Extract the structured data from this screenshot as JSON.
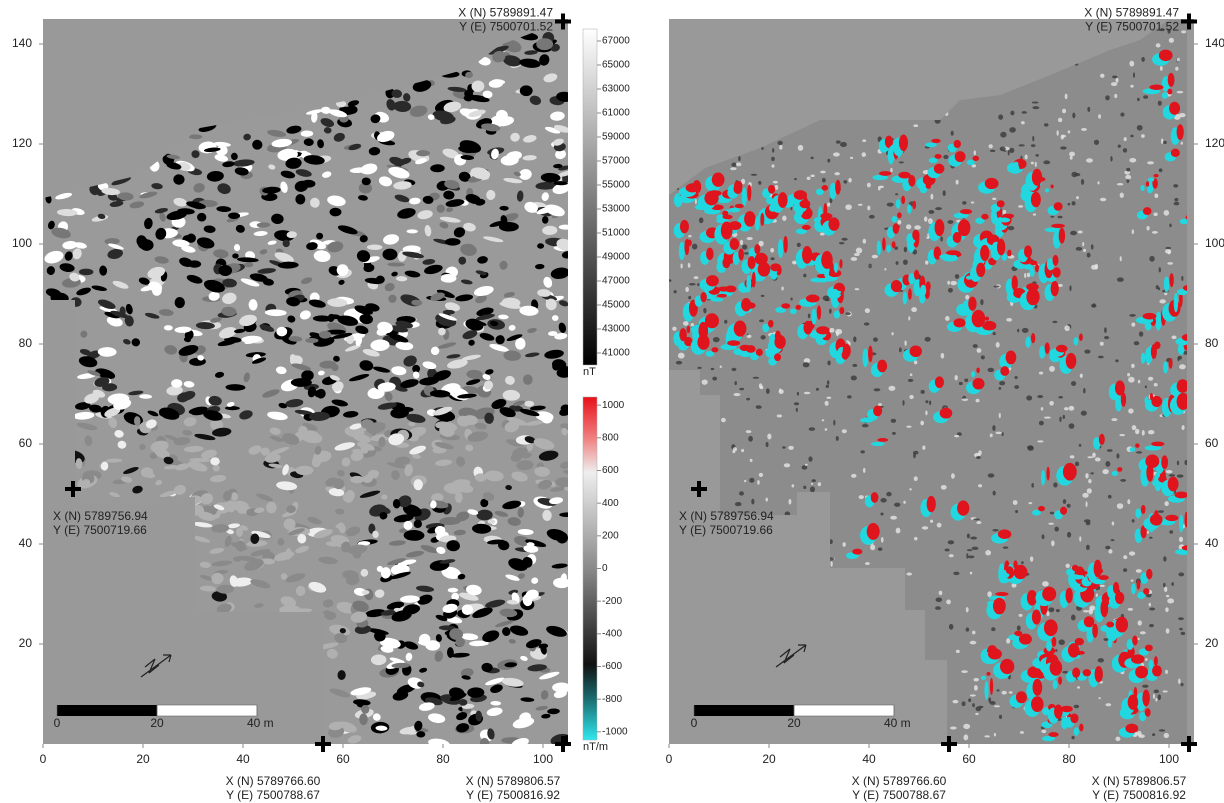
{
  "maps": [
    {
      "xlim": [
        0,
        105
      ],
      "ylim": [
        0,
        145
      ],
      "xticks": [
        0,
        20,
        40,
        60,
        80,
        100
      ],
      "yticks": [
        20,
        40,
        60,
        80,
        100,
        120,
        140
      ],
      "markers": [
        {
          "x": 104,
          "y": 144.5,
          "lines": [
            "X (N) 5789891.47",
            "Y (E) 7500701.52"
          ]
        },
        {
          "x": 6,
          "y": 51,
          "lines": [
            "X (N) 5789756.94",
            "Y (E) 7500719.66"
          ]
        },
        {
          "x": 56,
          "y": 0,
          "lines": [
            "X (N) 5789766.60",
            "Y (E) 7500788.67"
          ]
        },
        {
          "x": 104,
          "y": 0,
          "lines": [
            "X (N) 5789806.57",
            "Y (E) 7500816.92"
          ]
        }
      ],
      "scale_bar": {
        "ticks": [
          0,
          20,
          {
            "value": 40,
            "label": "40 m"
          }
        ]
      }
    },
    {
      "xlim": [
        0,
        105
      ],
      "ylim": [
        0,
        145
      ],
      "xticks": [
        0,
        20,
        40,
        60,
        80,
        100
      ],
      "yticks": [
        20,
        40,
        60,
        80,
        100,
        120,
        140
      ],
      "markers": [
        {
          "x": 104,
          "y": 144.5,
          "lines": [
            "X (N) 5789891.47",
            "Y (E) 7500701.52"
          ]
        },
        {
          "x": 6,
          "y": 51,
          "lines": [
            "X (N) 5789756.94",
            "Y (E) 7500719.66"
          ]
        },
        {
          "x": 56,
          "y": 0,
          "lines": [
            "X (N) 5789766.60",
            "Y (E) 7500788.67"
          ]
        },
        {
          "x": 104,
          "y": 0,
          "lines": [
            "X (N) 5789806.57",
            "Y (E) 7500816.92"
          ]
        }
      ],
      "scale_bar": {
        "ticks": [
          0,
          20,
          {
            "value": 40,
            "label": "40 m"
          }
        ]
      }
    }
  ],
  "colorbars": [
    {
      "unit": "nT",
      "lim": [
        40000,
        68000
      ],
      "ticks": [
        67000,
        65000,
        63000,
        61000,
        59000,
        57000,
        55000,
        53000,
        51000,
        49000,
        47000,
        45000,
        43000,
        41000
      ]
    },
    {
      "unit": "nT/m",
      "lim": [
        -1050,
        1050
      ],
      "ticks": [
        1000,
        800,
        600,
        400,
        200,
        0,
        -200,
        -400,
        -600,
        -800,
        -1000
      ]
    }
  ]
}
